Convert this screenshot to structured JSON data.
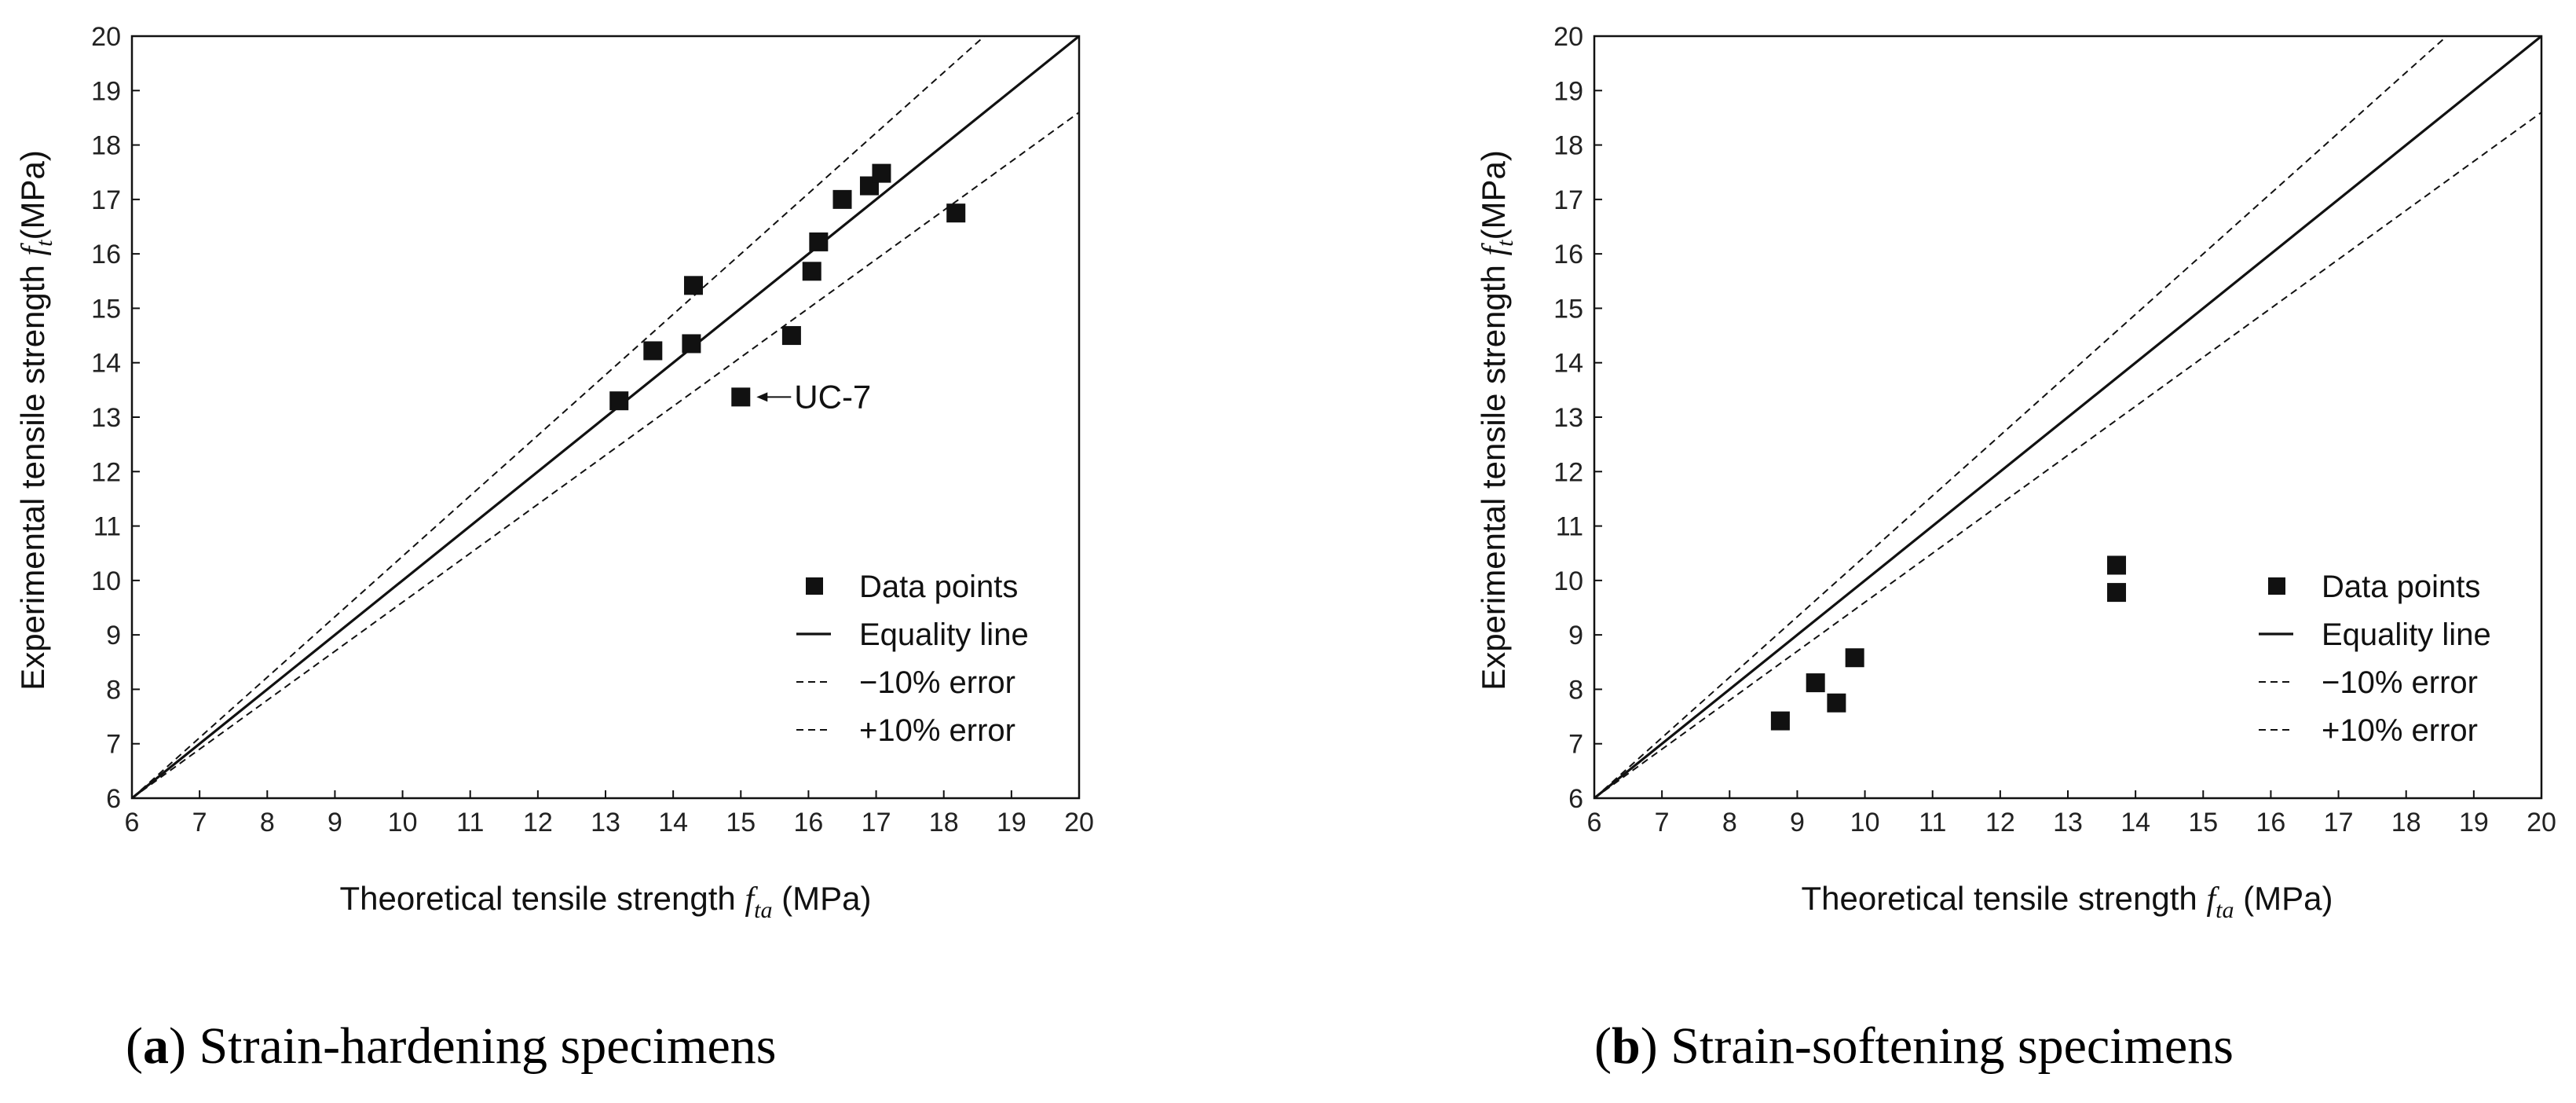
{
  "chart_data": [
    {
      "type": "scatter",
      "panel_label": "a",
      "caption": "Strain-hardening specimens",
      "xlabel": {
        "prefix": "Theoretical tensile strength ",
        "symbol": "f",
        "subscript": "ta",
        "suffix": " (MPa)"
      },
      "ylabel": {
        "prefix": "Experimental tensile strength ",
        "symbol": "f",
        "subscript": "t",
        "suffix": "(MPa)"
      },
      "xlim": [
        6,
        20
      ],
      "ylim": [
        6,
        20
      ],
      "xticks": [
        "6",
        "7",
        "8",
        "9",
        "10",
        "11",
        "12",
        "13",
        "14",
        "15",
        "16",
        "17",
        "18",
        "19",
        "20"
      ],
      "yticks": [
        "6",
        "7",
        "8",
        "9",
        "10",
        "11",
        "12",
        "13",
        "14",
        "15",
        "16",
        "17",
        "18",
        "19",
        "20"
      ],
      "points": [
        {
          "x": 13.2,
          "y": 13.3
        },
        {
          "x": 13.7,
          "y": 14.22
        },
        {
          "x": 14.27,
          "y": 14.35
        },
        {
          "x": 14.3,
          "y": 15.42
        },
        {
          "x": 15.0,
          "y": 13.37
        },
        {
          "x": 15.75,
          "y": 14.5
        },
        {
          "x": 16.05,
          "y": 15.68
        },
        {
          "x": 16.15,
          "y": 16.22
        },
        {
          "x": 16.5,
          "y": 17.0
        },
        {
          "x": 16.9,
          "y": 17.25
        },
        {
          "x": 17.08,
          "y": 17.48
        },
        {
          "x": 18.18,
          "y": 16.75
        }
      ],
      "annotation": {
        "text": "UC-7",
        "x": 15.0,
        "y": 13.37
      },
      "lines": [
        {
          "name": "Equality line",
          "slope": 1.0,
          "style": "solid"
        },
        {
          "name": "−10% error",
          "slope": 1.11111,
          "style": "dashed"
        },
        {
          "name": "+10% error",
          "slope": 0.9,
          "style": "dashed"
        }
      ],
      "legend": [
        {
          "marker": "square",
          "label": "Data points"
        },
        {
          "marker": "solid",
          "label": "Equality line"
        },
        {
          "marker": "dashed",
          "label": "−10% error"
        },
        {
          "marker": "dashed",
          "label": "+10% error"
        }
      ],
      "legend_position": "bottom-right"
    },
    {
      "type": "scatter",
      "panel_label": "b",
      "caption": "Strain-softening specimens",
      "xlabel": {
        "prefix": "Theoretical tensile strength ",
        "symbol": "f",
        "subscript": "ta",
        "suffix": " (MPa)"
      },
      "ylabel": {
        "prefix": "Experimental tensile strength ",
        "symbol": "f",
        "subscript": "t",
        "suffix": "(MPa)"
      },
      "xlim": [
        6,
        20
      ],
      "ylim": [
        6,
        20
      ],
      "xticks": [
        "6",
        "7",
        "8",
        "9",
        "10",
        "11",
        "12",
        "13",
        "14",
        "15",
        "16",
        "17",
        "18",
        "19",
        "20"
      ],
      "yticks": [
        "6",
        "7",
        "8",
        "9",
        "10",
        "11",
        "12",
        "13",
        "14",
        "15",
        "16",
        "17",
        "18",
        "19",
        "20"
      ],
      "points": [
        {
          "x": 8.75,
          "y": 7.42
        },
        {
          "x": 9.27,
          "y": 8.12
        },
        {
          "x": 9.58,
          "y": 7.75
        },
        {
          "x": 9.85,
          "y": 8.58
        },
        {
          "x": 13.72,
          "y": 10.28
        },
        {
          "x": 13.72,
          "y": 9.78
        }
      ],
      "lines": [
        {
          "name": "Equality line",
          "slope": 1.0,
          "style": "solid"
        },
        {
          "name": "−10% error",
          "slope": 1.11111,
          "style": "dashed"
        },
        {
          "name": "+10% error",
          "slope": 0.9,
          "style": "dashed"
        }
      ],
      "legend": [
        {
          "marker": "square",
          "label": "Data points"
        },
        {
          "marker": "solid",
          "label": "Equality line"
        },
        {
          "marker": "dashed",
          "label": "−10% error"
        },
        {
          "marker": "dashed",
          "label": "+10% error"
        }
      ],
      "legend_position": "bottom-right"
    }
  ]
}
